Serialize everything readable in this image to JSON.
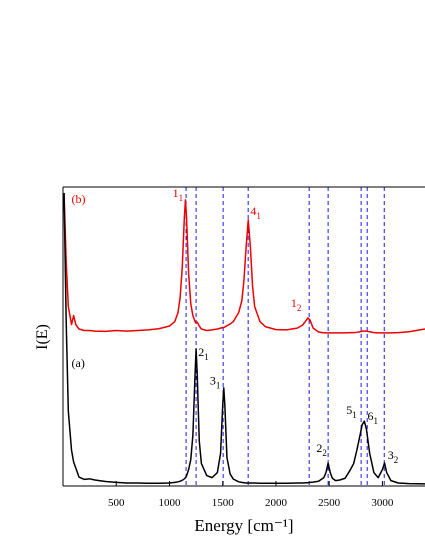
{
  "chart_data": {
    "type": "line",
    "xlabel": "Energy  [cm⁻¹]",
    "ylabel": "I(E)",
    "xlim": [
      0,
      3400
    ],
    "ylim": [
      0,
      100
    ],
    "xticks": [
      500,
      1000,
      1500,
      2000,
      2500,
      3000
    ],
    "x": [
      10,
      30,
      50,
      80,
      100,
      120,
      150,
      200,
      250,
      300,
      400,
      500,
      600,
      700,
      800,
      900,
      1000,
      1050,
      1080,
      1100,
      1120,
      1140,
      1150,
      1160,
      1180,
      1200,
      1220,
      1240,
      1250,
      1260,
      1280,
      1300,
      1350,
      1400,
      1450,
      1480,
      1500,
      1510,
      1520,
      1540,
      1570,
      1600,
      1650,
      1680,
      1700,
      1720,
      1740,
      1760,
      1780,
      1800,
      1850,
      1900,
      2000,
      2100,
      2200,
      2250,
      2280,
      2300,
      2320,
      2350,
      2400,
      2450,
      2470,
      2490,
      2510,
      2530,
      2560,
      2600,
      2650,
      2700,
      2730,
      2760,
      2790,
      2810,
      2830,
      2850,
      2880,
      2920,
      2960,
      3000,
      3020,
      3040,
      3080,
      3150,
      3250,
      3400
    ],
    "series": [
      {
        "name": "(b)",
        "color": "#ee0000",
        "values": [
          98,
          75,
          60,
          54,
          57,
          54,
          52.5,
          52,
          52,
          51.8,
          51.7,
          52,
          51.8,
          52,
          52.2,
          52.6,
          53.5,
          55,
          58,
          63,
          73,
          90,
          95.7,
          90,
          71,
          61,
          57,
          55,
          54.5,
          54.8,
          53.5,
          52.5,
          52,
          52.2,
          52.5,
          52.8,
          53,
          53,
          53.2,
          53.6,
          54.2,
          55,
          58,
          62,
          69,
          80,
          89,
          80,
          67,
          60,
          55,
          53.3,
          52.3,
          52.2,
          52.8,
          53.8,
          55.2,
          56.2,
          55.5,
          52.8,
          51.5,
          51.2,
          51.2,
          51.2,
          51.2,
          51.2,
          51.2,
          51.2,
          51.2,
          51.3,
          51.3,
          51.4,
          51.6,
          51.8,
          51.8,
          51.8,
          51.6,
          51.3,
          51.2,
          51.2,
          51.2,
          51.2,
          51.2,
          51.3,
          51.6,
          52.5
        ]
      },
      {
        "name": "(a)",
        "color": "#000000",
        "values": [
          98,
          55,
          25,
          12,
          8,
          6,
          3,
          2.2,
          2.4,
          2,
          1.5,
          1.2,
          1,
          1,
          0.9,
          0.9,
          1,
          1.2,
          1.4,
          1.6,
          1.9,
          2.4,
          2.8,
          3.4,
          5.5,
          8.8,
          17,
          37,
          45.8,
          38,
          15,
          7.5,
          3.5,
          2.8,
          4.5,
          11,
          27,
          32.8,
          27,
          9.5,
          4,
          2.3,
          1.4,
          1.2,
          1.1,
          1,
          1,
          1,
          1,
          1,
          0.9,
          0.9,
          0.9,
          0.9,
          1,
          1,
          1.1,
          1.1,
          1.2,
          1.3,
          1.6,
          2.8,
          4.5,
          7.7,
          4.5,
          2.6,
          1.8,
          2,
          2.6,
          5.5,
          7.5,
          12,
          17,
          20.5,
          21.7,
          19,
          11,
          4.5,
          2.8,
          5.5,
          7.7,
          4.5,
          1.8,
          1,
          0.8,
          0.7
        ]
      }
    ],
    "reference_lines": {
      "color": "#0000ee",
      "x": [
        1156,
        1250,
        1504,
        1739,
        2312,
        2490,
        2800,
        2857,
        3017
      ]
    },
    "annotations": [
      {
        "text": "(b)",
        "x": 80,
        "y": 94.6,
        "color": "#ee0000"
      },
      {
        "text": "(a)",
        "x": 80,
        "y": 39.8,
        "color": "#000000"
      },
      {
        "text": "1",
        "sub": "1",
        "x": 1030,
        "y": 96.7,
        "color": "#ee0000"
      },
      {
        "text": "4",
        "sub": "1",
        "x": 1760,
        "y": 90.6,
        "color": "#ee0000"
      },
      {
        "text": "1",
        "sub": "2",
        "x": 2140,
        "y": 59.9,
        "color": "#ee0000"
      },
      {
        "text": "2",
        "sub": "1",
        "x": 1270,
        "y": 43.5,
        "color": "#000000"
      },
      {
        "text": "3",
        "sub": "1",
        "x": 1380,
        "y": 34,
        "color": "#000000"
      },
      {
        "text": "2",
        "sub": "2",
        "x": 2380,
        "y": 11.4,
        "color": "#000000"
      },
      {
        "text": "5",
        "sub": "1",
        "x": 2660,
        "y": 24,
        "color": "#000000"
      },
      {
        "text": "6",
        "sub": "1",
        "x": 2860,
        "y": 22,
        "color": "#000000"
      },
      {
        "text": "3",
        "sub": "2",
        "x": 3050,
        "y": 9,
        "color": "#000000"
      }
    ]
  }
}
